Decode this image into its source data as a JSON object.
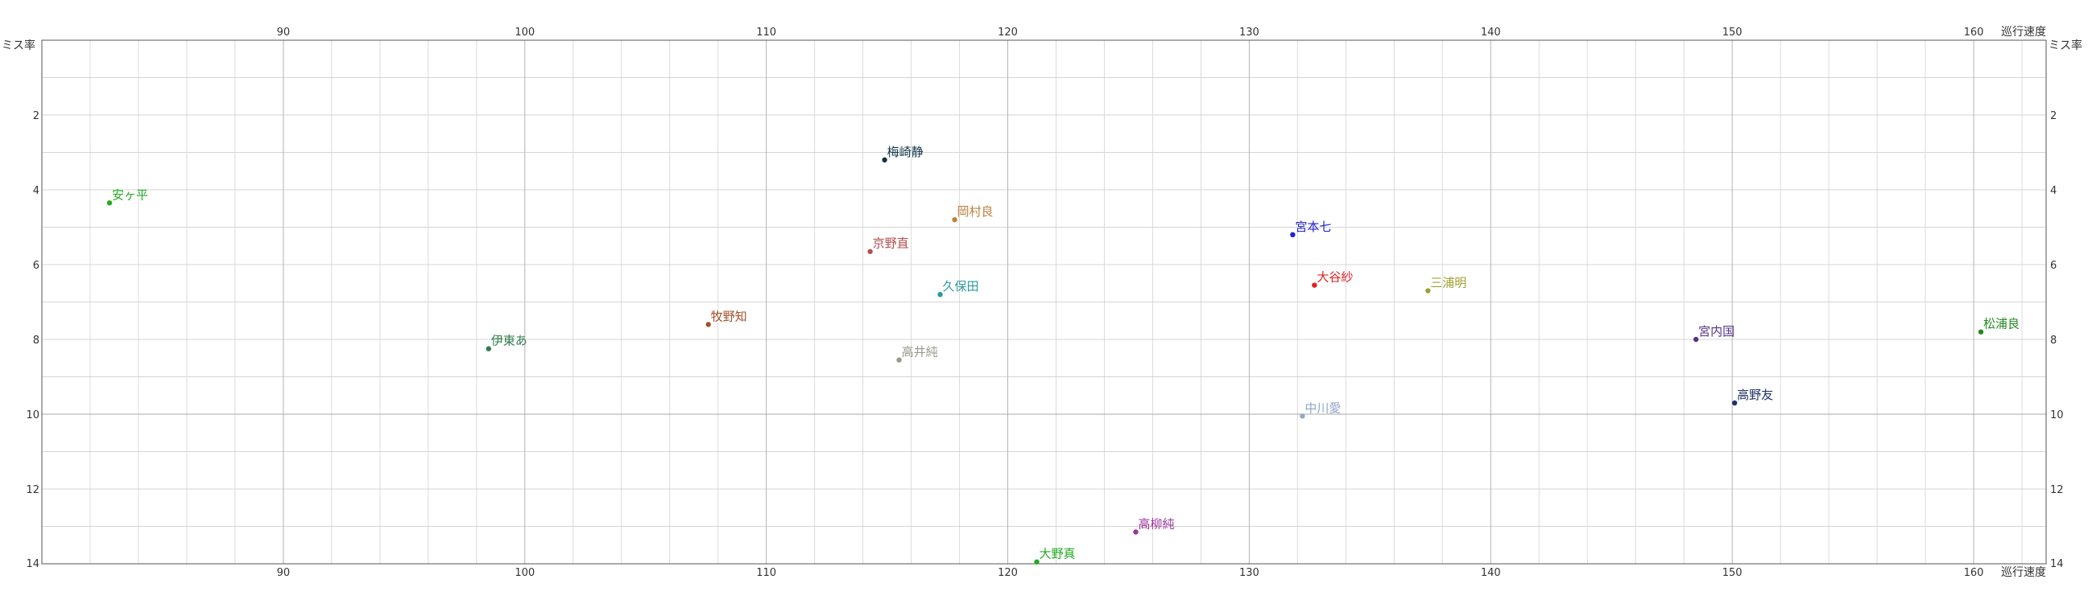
{
  "chart_data": {
    "type": "scatter",
    "title": "",
    "xlabel": "巡行速度",
    "ylabel": "ミス率",
    "xlim": [
      80,
      163
    ],
    "ylim": [
      0,
      14
    ],
    "y_inverted": true,
    "grid": true,
    "x_ticks": [
      90,
      100,
      110,
      120,
      130,
      140,
      150,
      160
    ],
    "y_ticks": [
      2,
      4,
      6,
      8,
      10,
      12,
      14
    ],
    "points": [
      {
        "label": "安ヶ平",
        "x": 82.8,
        "y": 4.35,
        "color": "#22aa22"
      },
      {
        "label": "梅崎静",
        "x": 114.9,
        "y": 3.2,
        "color": "#113344"
      },
      {
        "label": "岡村良",
        "x": 117.8,
        "y": 4.8,
        "color": "#c08040"
      },
      {
        "label": "京野直",
        "x": 114.3,
        "y": 5.65,
        "color": "#b05050"
      },
      {
        "label": "久保田",
        "x": 117.2,
        "y": 6.8,
        "color": "#2a9aa0"
      },
      {
        "label": "牧野知",
        "x": 107.6,
        "y": 7.6,
        "color": "#a0522d"
      },
      {
        "label": "伊東あ",
        "x": 98.5,
        "y": 8.25,
        "color": "#2e7d4f"
      },
      {
        "label": "高井純",
        "x": 115.5,
        "y": 8.55,
        "color": "#999988"
      },
      {
        "label": "宮本七",
        "x": 131.8,
        "y": 5.2,
        "color": "#2222cc"
      },
      {
        "label": "大谷紗",
        "x": 132.7,
        "y": 6.55,
        "color": "#dd2222"
      },
      {
        "label": "三浦明",
        "x": 137.4,
        "y": 6.7,
        "color": "#a0a030"
      },
      {
        "label": "中川愛",
        "x": 132.2,
        "y": 10.05,
        "color": "#90a8c8"
      },
      {
        "label": "高柳純",
        "x": 125.3,
        "y": 13.15,
        "color": "#993399"
      },
      {
        "label": "大野真",
        "x": 121.2,
        "y": 13.95,
        "color": "#22aa22"
      },
      {
        "label": "宮内国",
        "x": 148.5,
        "y": 8.0,
        "color": "#553388"
      },
      {
        "label": "高野友",
        "x": 150.1,
        "y": 9.7,
        "color": "#223366"
      },
      {
        "label": "松浦良",
        "x": 160.3,
        "y": 7.8,
        "color": "#228822"
      }
    ]
  }
}
